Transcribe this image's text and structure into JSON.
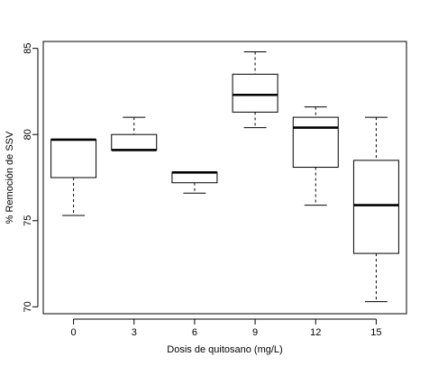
{
  "chart_data": {
    "type": "boxplot",
    "title": "",
    "xlabel": "Dosis de quitosano (mg/L)",
    "ylabel": "% Remoción de SSV",
    "ylim": [
      69.6,
      85.4
    ],
    "yticks": [
      70,
      75,
      80,
      85
    ],
    "categories": [
      "0",
      "3",
      "6",
      "9",
      "12",
      "15"
    ],
    "boxes": [
      {
        "category": "0",
        "whisker_low": 75.3,
        "q1": 77.5,
        "median": 79.7,
        "q3": 79.7,
        "whisker_high": 79.7
      },
      {
        "category": "3",
        "whisker_low": 79.1,
        "q1": 79.1,
        "median": 79.1,
        "q3": 80.0,
        "whisker_high": 81.0
      },
      {
        "category": "6",
        "whisker_low": 76.6,
        "q1": 77.2,
        "median": 77.8,
        "q3": 77.8,
        "whisker_high": 77.8
      },
      {
        "category": "9",
        "whisker_low": 80.4,
        "q1": 81.3,
        "median": 82.3,
        "q3": 83.5,
        "whisker_high": 84.8
      },
      {
        "category": "12",
        "whisker_low": 75.9,
        "q1": 78.1,
        "median": 80.4,
        "q3": 81.0,
        "whisker_high": 81.6
      },
      {
        "category": "15",
        "whisker_low": 70.3,
        "q1": 73.1,
        "median": 75.9,
        "q3": 78.5,
        "whisker_high": 81.0
      }
    ],
    "grid": false,
    "legend": "none",
    "colors": {
      "box_fill": "#ffffff",
      "stroke": "#000000"
    }
  }
}
